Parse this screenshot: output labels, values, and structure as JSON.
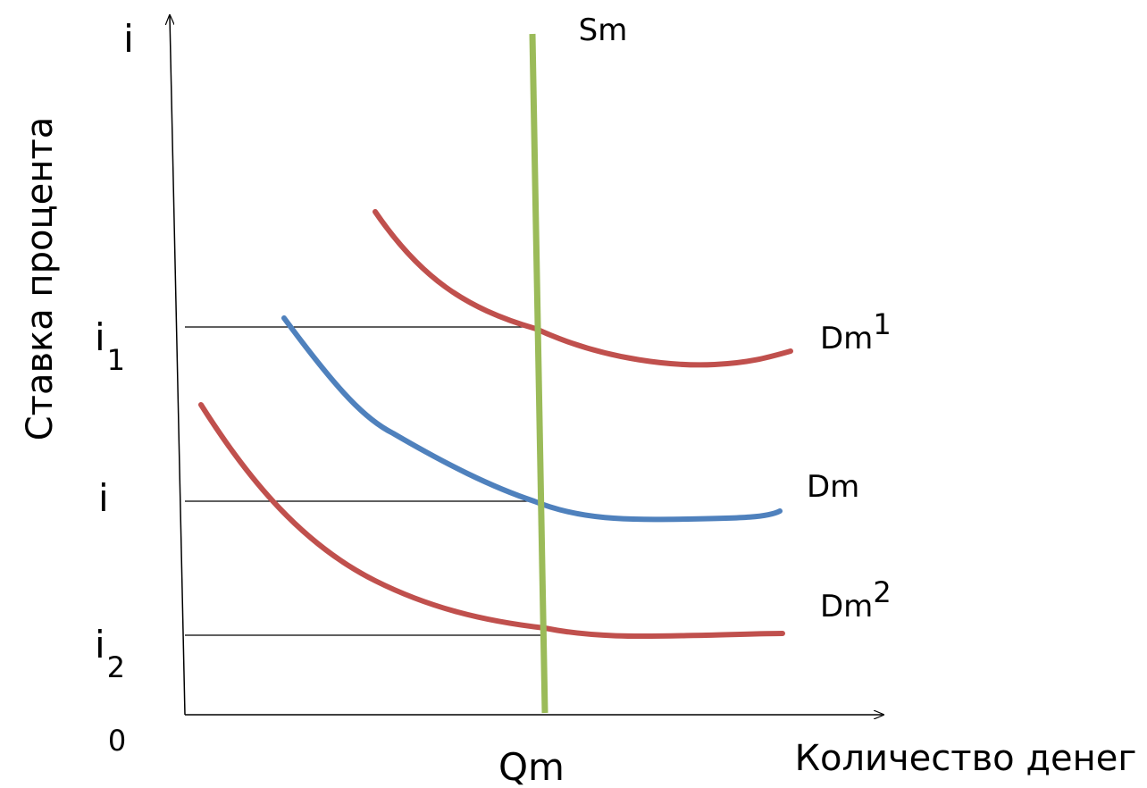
{
  "axes": {
    "y_title": "Ставка процента",
    "x_title": "Количество денег",
    "y_axis_symbol": "i",
    "origin": "0"
  },
  "levels": {
    "i1": {
      "base": "i",
      "subscript": "1"
    },
    "i": {
      "base": "i"
    },
    "i2": {
      "base": "i",
      "subscript": "2"
    }
  },
  "quantity_label": "Qm",
  "supply": {
    "label": "Sm",
    "color": "#9bbb59"
  },
  "demand": [
    {
      "id": "dm1",
      "base": "Dm",
      "superscript": "1",
      "color": "#c0504d"
    },
    {
      "id": "dm",
      "base": "Dm",
      "color": "#4f81bd"
    },
    {
      "id": "dm2",
      "base": "Dm",
      "superscript": "2",
      "color": "#c0504d"
    }
  ]
}
